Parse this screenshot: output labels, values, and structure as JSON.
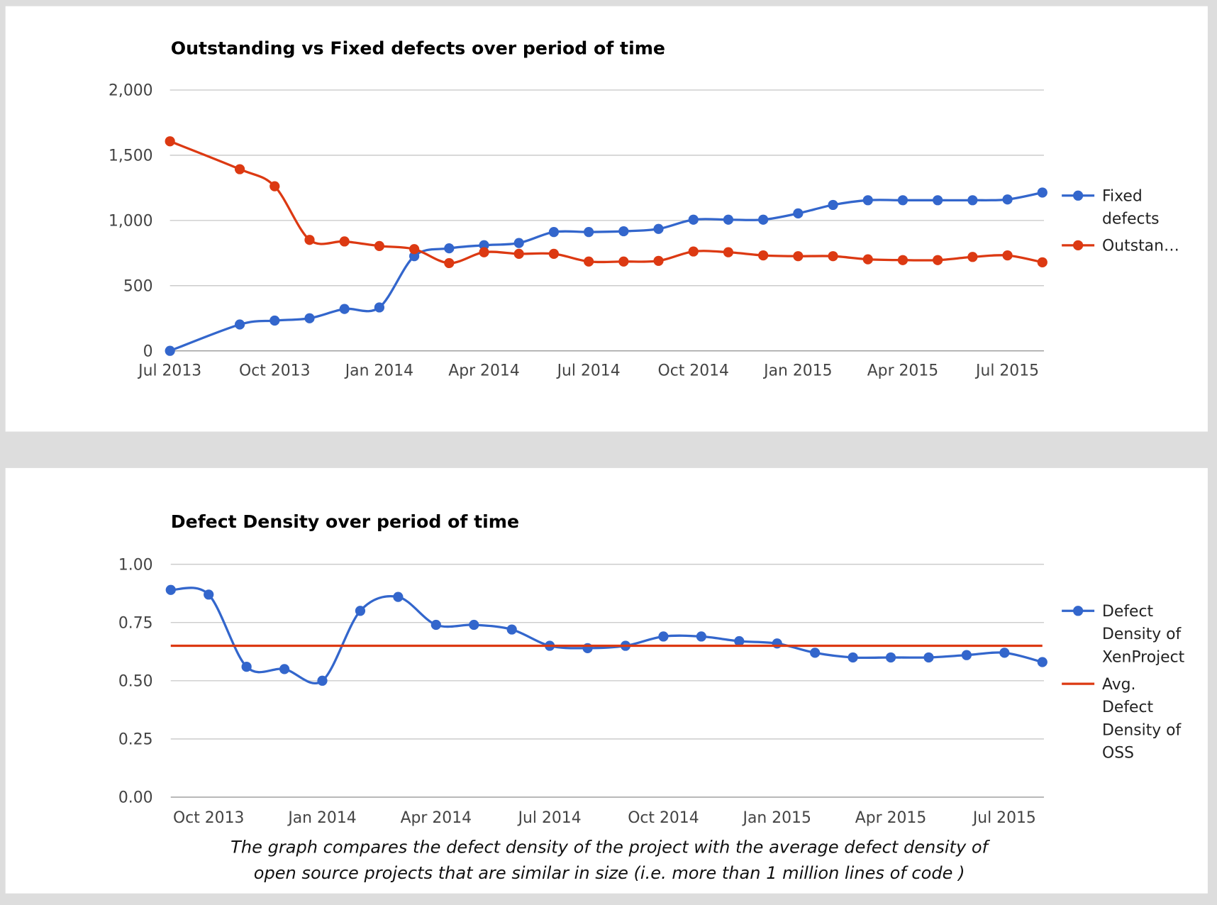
{
  "colors": {
    "blue": "#3366cc",
    "red": "#dc3912",
    "grid": "#cccccc",
    "background": "#dddddd"
  },
  "chart_data": [
    {
      "type": "line",
      "title": "Outstanding vs Fixed defects over period of time",
      "x_ticks": [
        "Jul 2013",
        "Oct 2013",
        "Jan 2014",
        "Apr 2014",
        "Jul 2014",
        "Oct 2014",
        "Jan 2015",
        "Apr 2015",
        "Jul 2015"
      ],
      "x_tick_dates": [
        "2013-07",
        "2013-10",
        "2014-01",
        "2014-04",
        "2014-07",
        "2014-10",
        "2015-01",
        "2015-04",
        "2015-07"
      ],
      "x_range": [
        "2013-07",
        "2015-08"
      ],
      "y_ticks": [
        "0",
        "500",
        "1,000",
        "1,500",
        "2,000"
      ],
      "ylim": [
        0,
        2000
      ],
      "grid": true,
      "legend": "right",
      "x": [
        "2013-07",
        "2013-09",
        "2013-10",
        "2013-11",
        "2013-12",
        "2014-01",
        "2014-02",
        "2014-03",
        "2014-04",
        "2014-05",
        "2014-06",
        "2014-07",
        "2014-08",
        "2014-09",
        "2014-10",
        "2014-11",
        "2014-12",
        "2015-01",
        "2015-02",
        "2015-03",
        "2015-04",
        "2015-05",
        "2015-06",
        "2015-07",
        "2015-08"
      ],
      "series": [
        {
          "name": "Fixed defects",
          "legend_lines": [
            "Fixed",
            "defects"
          ],
          "color": "#3366cc",
          "markers": true,
          "values": [
            0,
            202,
            232,
            250,
            321,
            333,
            726,
            786,
            810,
            827,
            911,
            911,
            917,
            935,
            1006,
            1006,
            1006,
            1054,
            1119,
            1155,
            1155,
            1155,
            1155,
            1161,
            1214
          ]
        },
        {
          "name": "Outstan…",
          "legend_lines": [
            "Outstan…"
          ],
          "color": "#dc3912",
          "markers": true,
          "values": [
            1607,
            1393,
            1262,
            851,
            839,
            804,
            780,
            673,
            756,
            744,
            744,
            685,
            685,
            690,
            762,
            756,
            732,
            726,
            726,
            702,
            696,
            696,
            720,
            732,
            679
          ]
        }
      ]
    },
    {
      "type": "line",
      "title": "Defect Density over period of time",
      "x_ticks": [
        "Oct 2013",
        "Jan 2014",
        "Apr 2014",
        "Jul 2014",
        "Oct 2014",
        "Jan 2015",
        "Apr 2015",
        "Jul 2015"
      ],
      "x_tick_dates": [
        "2013-10",
        "2014-01",
        "2014-04",
        "2014-07",
        "2014-10",
        "2015-01",
        "2015-04",
        "2015-07"
      ],
      "x_range": [
        "2013-09",
        "2015-08"
      ],
      "y_ticks": [
        "0.00",
        "0.25",
        "0.50",
        "0.75",
        "1.00"
      ],
      "ylim": [
        0,
        1
      ],
      "grid": true,
      "legend": "right",
      "x": [
        "2013-09",
        "2013-10",
        "2013-11",
        "2013-12",
        "2014-01",
        "2014-02",
        "2014-03",
        "2014-04",
        "2014-05",
        "2014-06",
        "2014-07",
        "2014-08",
        "2014-09",
        "2014-10",
        "2014-11",
        "2014-12",
        "2015-01",
        "2015-02",
        "2015-03",
        "2015-04",
        "2015-05",
        "2015-06",
        "2015-07",
        "2015-08"
      ],
      "series": [
        {
          "name": "Defect Density of XenProject",
          "legend_lines": [
            "Defect",
            "Density of",
            "XenProject"
          ],
          "color": "#3366cc",
          "markers": true,
          "values": [
            0.89,
            0.87,
            0.56,
            0.55,
            0.5,
            0.8,
            0.86,
            0.74,
            0.74,
            0.72,
            0.65,
            0.64,
            0.65,
            0.69,
            0.69,
            0.67,
            0.66,
            0.62,
            0.6,
            0.6,
            0.6,
            0.61,
            0.62,
            0.58
          ]
        },
        {
          "name": "Avg. Defect Density of OSS",
          "legend_lines": [
            "Avg.",
            "Defect",
            "Density of",
            "OSS"
          ],
          "color": "#dc3912",
          "markers": false,
          "values": [
            0.65,
            0.65,
            0.65,
            0.65,
            0.65,
            0.65,
            0.65,
            0.65,
            0.65,
            0.65,
            0.65,
            0.65,
            0.65,
            0.65,
            0.65,
            0.65,
            0.65,
            0.65,
            0.65,
            0.65,
            0.65,
            0.65,
            0.65,
            0.65
          ]
        }
      ],
      "caption_lines": [
        "The graph compares the defect density of the project with the average defect density of",
        "open source projects that are similar in size (i.e. more than 1 million lines of code )"
      ]
    }
  ]
}
